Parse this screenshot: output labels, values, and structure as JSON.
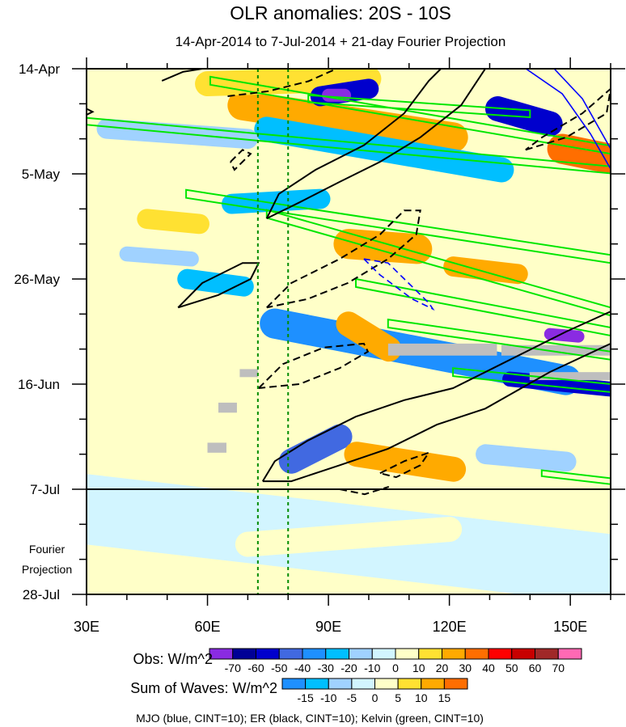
{
  "chart_data": {
    "type": "heatmap",
    "title": "OLR anomalies: 20S - 10S",
    "subtitle": "14-Apr-2014 to 7-Jul-2014 + 21-day Fourier Projection",
    "x_axis": {
      "range": [
        30,
        160
      ],
      "ticks": [
        30,
        60,
        90,
        120,
        150
      ],
      "tick_labels": [
        "30E",
        "60E",
        "90E",
        "120E",
        "150E"
      ],
      "minor_step": 10
    },
    "y_axis": {
      "range_days": [
        0,
        105
      ],
      "ticks_days": [
        0,
        21,
        42,
        63,
        84,
        105
      ],
      "tick_labels": [
        "14-Apr",
        "5-May",
        "26-May",
        "16-Jun",
        "7-Jul",
        "28-Jul"
      ],
      "minor_step_days": 7,
      "orientation": "time increases downward"
    },
    "projection_label": [
      "Fourier",
      "Projection"
    ],
    "observation_end_day": 84,
    "reference_lines_lon": [
      72.5,
      80
    ],
    "background_value": 5,
    "anomaly_features": [
      {
        "from": [
          68.7,
          7.3
        ],
        "to": [
          120.9,
          13.7
        ],
        "width_days": 3,
        "value": 25
      },
      {
        "from": [
          60,
          3
        ],
        "to": [
          100,
          2
        ],
        "width_days": 2.5,
        "value": 15
      },
      {
        "from": [
          74.7,
          12.1
        ],
        "to": [
          132.9,
          20.2
        ],
        "width_days": 2.5,
        "value": -30
      },
      {
        "from": [
          88,
          5.5
        ],
        "to": [
          100,
          4
        ],
        "width_days": 2,
        "value": -55
      },
      {
        "from": [
          90,
          5.3
        ],
        "to": [
          94,
          5.3
        ],
        "width_days": 1.3,
        "value": -75
      },
      {
        "from": [
          132,
          8
        ],
        "to": [
          145,
          11
        ],
        "width_days": 2.5,
        "value": -55
      },
      {
        "from": [
          148,
          16
        ],
        "to": [
          160,
          18
        ],
        "width_days": 3,
        "value": 35
      },
      {
        "from": [
          95,
          35
        ],
        "to": [
          112,
          36
        ],
        "width_days": 3,
        "value": 25
      },
      {
        "from": [
          66,
          27
        ],
        "to": [
          88,
          26
        ],
        "width_days": 2,
        "value": -25
      },
      {
        "from": [
          76.7,
          50.9
        ],
        "to": [
          148.9,
          62.2
        ],
        "width_days": 3,
        "value": -35
      },
      {
        "from": [
          80.8,
          78.4
        ],
        "to": [
          92.8,
          73.5
        ],
        "width_days": 2.5,
        "value": -45
      },
      {
        "from": [
          55,
          42
        ],
        "to": [
          69,
          43.5
        ],
        "width_days": 2,
        "value": -25
      },
      {
        "from": [
          95,
          51
        ],
        "to": [
          105,
          56
        ],
        "width_days": 2.5,
        "value": 25
      },
      {
        "from": [
          121,
          39.5
        ],
        "to": [
          137,
          41
        ],
        "width_days": 2,
        "value": 25
      },
      {
        "from": [
          97,
          77
        ],
        "to": [
          121,
          80
        ],
        "width_days": 2.5,
        "value": 25
      },
      {
        "from": [
          129,
          77
        ],
        "to": [
          149,
          78.5
        ],
        "width_days": 2,
        "value": -15
      },
      {
        "from": [
          40,
          37
        ],
        "to": [
          56,
          38
        ],
        "width_days": 1.5,
        "value": -15
      },
      {
        "from": [
          45,
          30
        ],
        "to": [
          58,
          31
        ],
        "width_days": 2,
        "value": 15
      },
      {
        "from": [
          135,
          62
        ],
        "to": [
          160,
          64
        ],
        "width_days": 1.5,
        "value": -55
      },
      {
        "from": [
          145,
          53
        ],
        "to": [
          152,
          53.5
        ],
        "width_days": 1.2,
        "value": -75
      },
      {
        "from": [
          30,
          88
        ],
        "to": [
          160,
          100
        ],
        "width_days": 7,
        "value": -3
      },
      {
        "from": [
          70,
          95
        ],
        "to": [
          120,
          92
        ],
        "width_days": 2.5,
        "value": 7
      },
      {
        "from": [
          35,
          12
        ],
        "to": [
          70,
          14
        ],
        "width_days": 2,
        "value": -12
      }
    ],
    "missing_regions": [
      {
        "lon": [
          104.8,
          131.8
        ],
        "days": [
          54.9,
          57.3
        ]
      },
      {
        "lon": [
          132.9,
          160
        ],
        "days": [
          55.2,
          57.3
        ]
      },
      {
        "lon": [
          139.9,
          160
        ],
        "days": [
          60.6,
          62.2
        ]
      },
      {
        "lon": [
          68,
          72.5
        ],
        "days": [
          60,
          61.6
        ]
      },
      {
        "lon": [
          62.7,
          67.3
        ],
        "days": [
          66.7,
          68.7
        ]
      },
      {
        "lon": [
          60,
          64.7
        ],
        "days": [
          74.7,
          76.7
        ]
      }
    ],
    "contours": {
      "er_solid": [
        [
          [
            73.7,
            82.4
          ],
          [
            80.8,
            82.4
          ],
          [
            92.8,
            79.2
          ],
          [
            104.8,
            75.9
          ],
          [
            116.9,
            71.1
          ],
          [
            128.9,
            67.9
          ],
          [
            144.9,
            60.6
          ],
          [
            160,
            54.9
          ],
          [
            160,
            48.5
          ],
          [
            149,
            52.5
          ],
          [
            132.9,
            59
          ],
          [
            120.9,
            63.8
          ],
          [
            108.8,
            66.2
          ],
          [
            96.8,
            69.5
          ],
          [
            84.8,
            74.3
          ],
          [
            76.7,
            78.4
          ],
          [
            73.7,
            82.4
          ]
        ],
        [
          [
            74.7,
            29.9
          ],
          [
            77.7,
            25
          ],
          [
            86.8,
            20.2
          ],
          [
            98.8,
            15.3
          ],
          [
            108.8,
            8.9
          ],
          [
            114.9,
            2.4
          ],
          [
            117.9,
            0
          ],
          [
            128.9,
            0
          ],
          [
            122.9,
            7.3
          ],
          [
            112.8,
            13.7
          ],
          [
            102.8,
            18.6
          ],
          [
            92.8,
            22.6
          ],
          [
            82.8,
            26.7
          ],
          [
            74.7,
            29.9
          ]
        ],
        [
          [
            52.7,
            47.7
          ],
          [
            58.7,
            42.8
          ],
          [
            68.7,
            38.8
          ],
          [
            72.7,
            38.8
          ],
          [
            70.7,
            42
          ],
          [
            62.7,
            45.2
          ],
          [
            52.7,
            47.7
          ]
        ],
        [
          [
            48.7,
            2.4
          ],
          [
            54,
            0.6
          ],
          [
            58.7,
            0
          ]
        ],
        [
          [
            30,
            8
          ],
          [
            31.5,
            8.6
          ],
          [
            30,
            9.2
          ]
        ]
      ],
      "er_dashed": [
        [
          [
            74.7,
            47.7
          ],
          [
            80.8,
            42.8
          ],
          [
            92.8,
            38
          ],
          [
            102.8,
            33.1
          ],
          [
            108.8,
            28.3
          ],
          [
            112.8,
            28.3
          ],
          [
            111.8,
            33.1
          ],
          [
            104.8,
            38
          ],
          [
            94.8,
            42.8
          ],
          [
            84.8,
            46
          ],
          [
            74.7,
            47.7
          ]
        ],
        [
          [
            72.7,
            63.8
          ],
          [
            78.7,
            59
          ],
          [
            88.8,
            55.7
          ],
          [
            98.8,
            54.9
          ],
          [
            99.8,
            56.5
          ],
          [
            92.8,
            59.8
          ],
          [
            82.8,
            63
          ],
          [
            72.7,
            63.8
          ]
        ],
        [
          [
            102.8,
            80.8
          ],
          [
            108.8,
            78.4
          ],
          [
            114.9,
            76.7
          ],
          [
            112.8,
            79.2
          ],
          [
            106.8,
            81.6
          ],
          [
            102.8,
            80.8
          ]
        ],
        [
          [
            92.8,
            84
          ],
          [
            99,
            85
          ],
          [
            105,
            83.5
          ]
        ],
        [
          [
            65.7,
            18.6
          ],
          [
            68.7,
            16.2
          ],
          [
            70.7,
            17
          ],
          [
            66.7,
            20.2
          ],
          [
            65.7,
            18.6
          ]
        ],
        [
          [
            65,
            5.5
          ],
          [
            75,
            4.5
          ],
          [
            85,
            2.5
          ],
          [
            92,
            0
          ]
        ],
        [
          [
            138.9,
            16.2
          ],
          [
            149,
            13.7
          ],
          [
            159,
            8.9
          ],
          [
            160,
            4
          ],
          [
            153,
            8.9
          ],
          [
            143,
            13.7
          ],
          [
            138.9,
            16.2
          ]
        ]
      ],
      "mjo_solid": [
        [
          [
            139,
            0
          ],
          [
            148,
            5
          ],
          [
            155,
            13
          ],
          [
            160,
            20
          ]
        ],
        [
          [
            146,
            0
          ],
          [
            153,
            6
          ],
          [
            160,
            16
          ]
        ]
      ],
      "mjo_dashed": [
        [
          [
            98.8,
            38
          ],
          [
            104.8,
            38.8
          ],
          [
            114.9,
            46.8
          ],
          [
            115.9,
            48
          ],
          [
            110.8,
            46
          ],
          [
            102.8,
            41.2
          ],
          [
            98.8,
            38
          ]
        ]
      ],
      "kelvin": [
        {
          "from": [
            60.7,
            2.4
          ],
          "to": [
            160,
            16.2
          ],
          "half_width_days": 0.8
        },
        {
          "from": [
            30,
            10.5
          ],
          "to": [
            160,
            20.2
          ],
          "half_width_days": 0.7
        },
        {
          "from": [
            54.7,
            25
          ],
          "to": [
            160,
            38
          ],
          "half_width_days": 0.8
        },
        {
          "from": [
            74.7,
            29
          ],
          "to": [
            160,
            48.5
          ],
          "half_width_days": 0.8
        },
        {
          "from": [
            96.8,
            42.8
          ],
          "to": [
            160,
            52.5
          ],
          "half_width_days": 0.8
        },
        {
          "from": [
            104.8,
            50.9
          ],
          "to": [
            160,
            57.3
          ],
          "half_width_days": 0.8
        },
        {
          "from": [
            120.9,
            60.6
          ],
          "to": [
            160,
            63.8
          ],
          "half_width_days": 0.8
        },
        {
          "from": [
            142.9,
            80.8
          ],
          "to": [
            160,
            82.4
          ],
          "half_width_days": 0.6
        },
        {
          "from": [
            85,
            6
          ],
          "to": [
            140,
            9
          ],
          "half_width_days": 0.7
        }
      ]
    },
    "colorbars": [
      {
        "label": "Obs: W/m^2",
        "levels": [
          -70,
          -60,
          -50,
          -40,
          -30,
          -20,
          -10,
          0,
          10,
          20,
          30,
          40,
          50,
          60,
          70
        ],
        "colors": [
          "#8a2be2",
          "#000096",
          "#0000cd",
          "#4169e1",
          "#1e90ff",
          "#00bfff",
          "#a0d2ff",
          "#d2f5ff",
          "#ffffc8",
          "#ffe132",
          "#ffaa00",
          "#ff6e00",
          "#ff0000",
          "#c80000",
          "#a02828",
          "#ff69b4"
        ]
      },
      {
        "label": "Sum of Waves: W/m^2",
        "levels": [
          -15,
          -10,
          -5,
          0,
          5,
          10,
          15
        ],
        "colors": [
          "#1e90ff",
          "#00bfff",
          "#a0d2ff",
          "#d2f5ff",
          "#ffffc8",
          "#ffe132",
          "#ffaa00",
          "#ff6e00"
        ]
      }
    ],
    "footnote": "MJO (blue, CINT=10); ER (black, CINT=10); Kelvin (green, CINT=10)",
    "line_colors": {
      "mjo": "#0000ff",
      "er": "#000000",
      "kelvin": "#00e600",
      "reference": "#008c00",
      "missing": "#bebebe"
    }
  }
}
